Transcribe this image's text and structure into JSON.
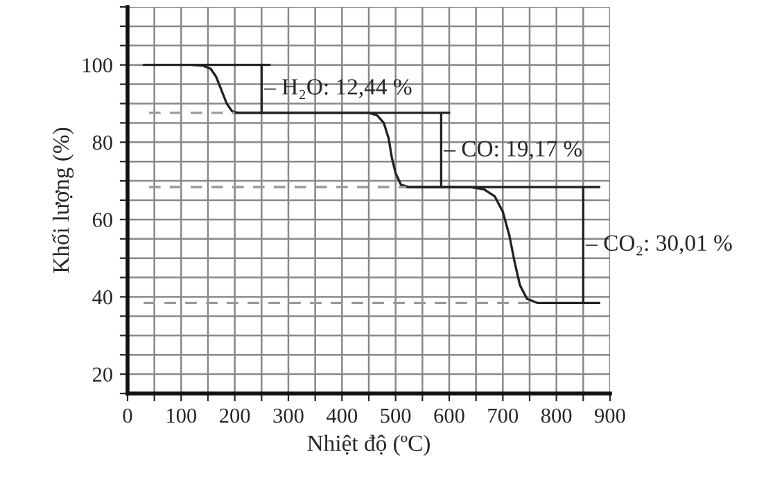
{
  "chart_data": {
    "type": "line",
    "xlabel": "Nhiệt độ (ºC)",
    "ylabel": "Khối lượng (%)",
    "xlim": [
      0,
      900
    ],
    "ylim": [
      15,
      115
    ],
    "xticks": [
      0,
      {
        "value": 50,
        "label": null
      },
      100,
      {
        "value": 150,
        "label": null
      },
      200,
      {
        "value": 250,
        "label": null
      },
      300,
      {
        "value": 350,
        "label": null
      },
      400,
      {
        "value": 450,
        "label": null
      },
      500,
      {
        "value": 550,
        "label": null
      },
      600,
      {
        "value": 650,
        "label": null
      },
      700,
      {
        "value": 750,
        "label": null
      },
      800,
      {
        "value": 850,
        "label": null
      },
      900
    ],
    "yticks": [
      {
        "value": 15,
        "label": null
      },
      20,
      {
        "value": 25,
        "label": null
      },
      {
        "value": 30,
        "label": null
      },
      {
        "value": 35,
        "label": null
      },
      40,
      {
        "value": 45,
        "label": null
      },
      {
        "value": 50,
        "label": null
      },
      {
        "value": 55,
        "label": null
      },
      60,
      {
        "value": 65,
        "label": null
      },
      {
        "value": 70,
        "label": null
      },
      {
        "value": 75,
        "label": null
      },
      80,
      {
        "value": 85,
        "label": null
      },
      {
        "value": 90,
        "label": null
      },
      {
        "value": 95,
        "label": null
      },
      100,
      {
        "value": 105,
        "label": null
      },
      {
        "value": 110,
        "label": null
      },
      {
        "value": 115,
        "label": null
      }
    ],
    "grid": true,
    "marker": "none",
    "series": [
      {
        "color": "#222222",
        "line_style": "solid",
        "x": [
          30,
          120,
          140,
          155,
          165,
          175,
          185,
          195,
          205,
          450,
          465,
          478,
          487,
          493,
          500,
          510,
          525,
          640,
          665,
          685,
          700,
          712,
          722,
          732,
          745,
          765,
          880
        ],
        "values": [
          100,
          100,
          99.8,
          99,
          97,
          93.5,
          90,
          88,
          87.6,
          87.6,
          87,
          85,
          81,
          76,
          72,
          69,
          68.4,
          68.4,
          67.8,
          66,
          62,
          56,
          49,
          43,
          39.5,
          38.4,
          38.4
        ]
      },
      {
        "color": "#222222",
        "line_style": "solid",
        "x": [
          120,
          265
        ],
        "values": [
          100,
          100
        ]
      },
      {
        "color": "#222222",
        "line_style": "solid",
        "x": [
          200,
          600
        ],
        "values": [
          87.6,
          87.6
        ]
      },
      {
        "color": "#222222",
        "line_style": "solid",
        "x": [
          520,
          880
        ],
        "values": [
          68.4,
          68.4
        ]
      },
      {
        "color": "#999999",
        "line_style": "dashed",
        "x": [
          40,
          200
        ],
        "values": [
          87.6,
          87.6
        ]
      },
      {
        "color": "#999999",
        "line_style": "dashed",
        "x": [
          40,
          520
        ],
        "values": [
          68.4,
          68.4
        ]
      },
      {
        "color": "#999999",
        "line_style": "dashed",
        "x": [
          30,
          760
        ],
        "values": [
          38.4,
          38.4
        ]
      },
      {
        "color": "#222222",
        "line_style": "solid",
        "x": [
          250,
          250
        ],
        "values": [
          100,
          87.6
        ]
      },
      {
        "color": "#222222",
        "line_style": "solid",
        "x": [
          585,
          585
        ],
        "values": [
          87.6,
          68.4
        ]
      },
      {
        "color": "#222222",
        "line_style": "solid",
        "x": [
          850,
          850
        ],
        "values": [
          68.4,
          38.4
        ]
      }
    ],
    "annotations": [
      {
        "text": "– H₂O: 12,44 %",
        "x": 255,
        "y": 93.8
      },
      {
        "text": "– CO: 19,17 %",
        "x": 590,
        "y": 77.8
      },
      {
        "text": "– CO₂: 30,01 %",
        "x": 855,
        "y": 53.4
      }
    ]
  }
}
